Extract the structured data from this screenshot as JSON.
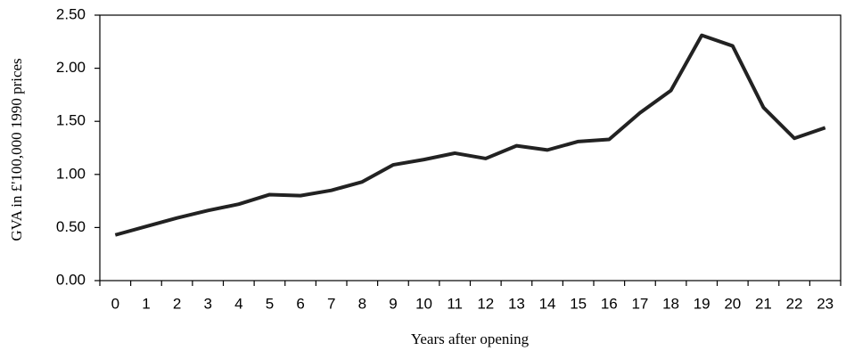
{
  "chart_data": {
    "type": "line",
    "x_label": "Years after opening",
    "y_label": "GVA in £'100,000 1990 prices",
    "categories": [
      "0",
      "1",
      "2",
      "3",
      "4",
      "5",
      "6",
      "7",
      "8",
      "9",
      "10",
      "11",
      "12",
      "13",
      "14",
      "15",
      "16",
      "17",
      "18",
      "19",
      "20",
      "21",
      "22",
      "23"
    ],
    "series": [
      {
        "name": "GVA",
        "color": "#222222",
        "values": [
          0.43,
          0.51,
          0.59,
          0.66,
          0.72,
          0.81,
          0.8,
          0.85,
          0.93,
          1.09,
          1.14,
          1.2,
          1.15,
          1.27,
          1.23,
          1.31,
          1.33,
          1.58,
          1.79,
          2.31,
          2.21,
          1.63,
          1.34,
          1.44
        ]
      }
    ],
    "ylim": [
      0,
      2.5
    ],
    "yticks": [
      {
        "value": 0,
        "label": "0.00"
      },
      {
        "value": 0.5,
        "label": "0.50"
      },
      {
        "value": 1,
        "label": "1.00"
      },
      {
        "value": 1.5,
        "label": "1.50"
      },
      {
        "value": 2,
        "label": "2.00"
      },
      {
        "value": 2.5,
        "label": "2.50"
      }
    ],
    "grid": false
  }
}
